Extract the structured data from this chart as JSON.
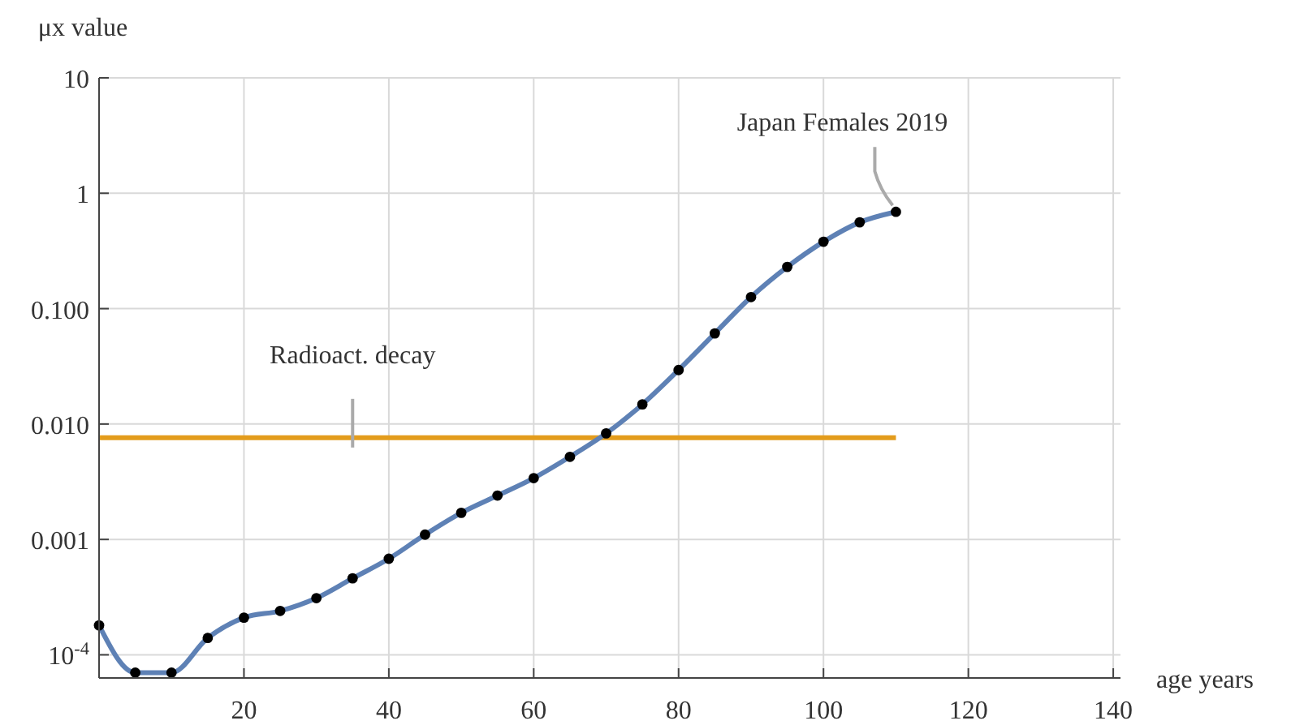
{
  "chart_data": {
    "type": "line",
    "xlabel": "age years",
    "ylabel": "μx value",
    "log": "y",
    "grid": true,
    "x": [
      0,
      5,
      10,
      15,
      20,
      25,
      30,
      35,
      40,
      45,
      50,
      55,
      60,
      65,
      70,
      75,
      80,
      85,
      90,
      95,
      100,
      105,
      110
    ],
    "xlim": [
      0,
      141
    ],
    "xticks": [
      20,
      40,
      60,
      80,
      100,
      120,
      140
    ],
    "ylim": [
      6.3e-05,
      10
    ],
    "yticks": [
      {
        "value": 0.0001,
        "label": "10$^{-4}$"
      },
      {
        "value": 0.001,
        "label": "0.001"
      },
      {
        "value": 0.01,
        "label": "0.010"
      },
      {
        "value": 0.1,
        "label": "0.100"
      },
      1,
      10
    ],
    "series": [
      {
        "name": "Japan Females 2019",
        "color": "#5e81b5",
        "marker": "none",
        "values": [
          0.00018,
          7e-05,
          7e-05,
          0.00014,
          0.00021,
          0.00024,
          0.00031,
          0.00046,
          0.00068,
          0.0011,
          0.0017,
          0.0024,
          0.0034,
          0.0052,
          0.0083,
          0.0148,
          0.0294,
          0.061,
          0.126,
          0.23,
          0.38,
          0.56,
          0.69
        ]
      },
      {
        "type": "scatter",
        "color": "#000000",
        "marker": "circle",
        "values": [
          0.00018,
          7e-05,
          7e-05,
          0.00014,
          0.00021,
          0.00024,
          0.00031,
          0.00046,
          0.00068,
          0.0011,
          0.0017,
          0.0024,
          0.0034,
          0.0052,
          0.0083,
          0.0148,
          0.0294,
          0.061,
          0.126,
          0.23,
          0.38,
          0.56,
          0.69
        ]
      }
    ],
    "ref_lines": [
      {
        "axis": "y",
        "value": 0.0076,
        "label": "Radioact. decay",
        "color": "#e39c1c",
        "line_style": "solid"
      }
    ]
  }
}
